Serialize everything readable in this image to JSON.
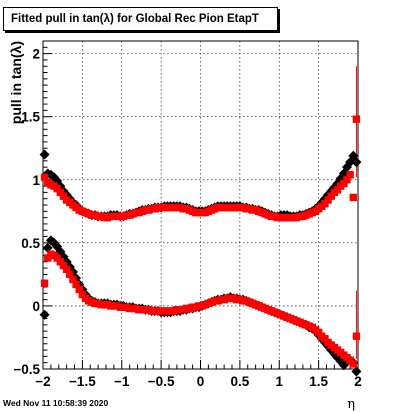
{
  "chart_data": {
    "type": "scatter",
    "title": "Fitted pull in tan(λ) for Global Rec Pion EtapT",
    "xlabel": "η",
    "ylabel": "pull in tan(λ)",
    "xlim": [
      -2,
      2
    ],
    "ylim": [
      -0.5,
      2.1
    ],
    "xticks": [
      -2,
      -1.5,
      -1,
      -0.5,
      0,
      0.5,
      1,
      1.5,
      2
    ],
    "xtick_labels": [
      "−2",
      "−1.5",
      "−1",
      "−0.5",
      "0",
      "0.5",
      "1",
      "1.5",
      "2"
    ],
    "yticks": [
      -0.5,
      0,
      0.5,
      1,
      1.5,
      2
    ],
    "ytick_labels": [
      "−0.5",
      "0",
      "0.5",
      "1",
      "1.5",
      "2"
    ],
    "grid": true,
    "series": [
      {
        "name": "",
        "color": "#000000",
        "marker": "diamond",
        "x": [
          -1.98,
          -1.94,
          -1.9,
          -1.86,
          -1.82,
          -1.78,
          -1.74,
          -1.7,
          -1.66,
          -1.62,
          -1.58,
          -1.54,
          -1.5,
          -1.46,
          -1.42,
          -1.38,
          -1.34,
          -1.3,
          -1.26,
          -1.22,
          -1.18,
          -1.14,
          -1.1,
          -1.06,
          -1.02,
          -0.98,
          -0.94,
          -0.9,
          -0.86,
          -0.82,
          -0.78,
          -0.74,
          -0.7,
          -0.66,
          -0.62,
          -0.58,
          -0.54,
          -0.5,
          -0.46,
          -0.42,
          -0.38,
          -0.34,
          -0.3,
          -0.26,
          -0.22,
          -0.18,
          -0.14,
          -0.1,
          -0.06,
          -0.02,
          0.02,
          0.06,
          0.1,
          0.14,
          0.18,
          0.22,
          0.26,
          0.3,
          0.34,
          0.38,
          0.42,
          0.46,
          0.5,
          0.54,
          0.58,
          0.62,
          0.66,
          0.7,
          0.74,
          0.78,
          0.82,
          0.86,
          0.9,
          0.94,
          0.98,
          1.02,
          1.06,
          1.1,
          1.14,
          1.18,
          1.22,
          1.26,
          1.3,
          1.34,
          1.38,
          1.42,
          1.46,
          1.5,
          1.54,
          1.58,
          1.62,
          1.66,
          1.7,
          1.74,
          1.78,
          1.82,
          1.86,
          1.9,
          1.94,
          1.98
        ],
        "upper_y": [
          1.2,
          1.05,
          1.04,
          1.02,
          0.99,
          0.95,
          0.91,
          0.88,
          0.85,
          0.82,
          0.8,
          0.77,
          0.75,
          0.74,
          0.73,
          0.72,
          0.72,
          0.71,
          0.71,
          0.71,
          0.71,
          0.72,
          0.72,
          0.72,
          0.71,
          0.71,
          0.72,
          0.73,
          0.73,
          0.74,
          0.75,
          0.76,
          0.76,
          0.77,
          0.77,
          0.78,
          0.78,
          0.78,
          0.79,
          0.79,
          0.79,
          0.79,
          0.79,
          0.79,
          0.78,
          0.78,
          0.77,
          0.76,
          0.75,
          0.75,
          0.75,
          0.75,
          0.76,
          0.77,
          0.78,
          0.79,
          0.79,
          0.79,
          0.79,
          0.79,
          0.79,
          0.79,
          0.79,
          0.78,
          0.78,
          0.77,
          0.77,
          0.76,
          0.76,
          0.75,
          0.74,
          0.73,
          0.72,
          0.71,
          0.71,
          0.72,
          0.72,
          0.72,
          0.71,
          0.71,
          0.71,
          0.72,
          0.72,
          0.73,
          0.74,
          0.75,
          0.77,
          0.79,
          0.82,
          0.85,
          0.88,
          0.91,
          0.94,
          0.97,
          1.01,
          1.05,
          1.1,
          1.14,
          1.19,
          1.14
        ],
        "lower_y": [
          -0.07,
          0.46,
          0.52,
          0.5,
          0.47,
          0.43,
          0.39,
          0.35,
          0.31,
          0.27,
          0.22,
          0.17,
          0.13,
          0.09,
          0.06,
          0.04,
          0.03,
          0.02,
          0.02,
          0.02,
          0.02,
          0.01,
          0.01,
          0.01,
          0.0,
          0.0,
          -0.01,
          -0.01,
          -0.01,
          -0.02,
          -0.02,
          -0.02,
          -0.03,
          -0.03,
          -0.04,
          -0.04,
          -0.04,
          -0.05,
          -0.05,
          -0.05,
          -0.05,
          -0.04,
          -0.04,
          -0.04,
          -0.03,
          -0.03,
          -0.02,
          -0.02,
          -0.01,
          -0.01,
          0.0,
          0.01,
          0.02,
          0.03,
          0.04,
          0.05,
          0.05,
          0.06,
          0.06,
          0.07,
          0.06,
          0.06,
          0.05,
          0.05,
          0.04,
          0.03,
          0.02,
          0.01,
          0.0,
          -0.01,
          -0.02,
          -0.03,
          -0.04,
          -0.05,
          -0.06,
          -0.07,
          -0.08,
          -0.09,
          -0.1,
          -0.11,
          -0.12,
          -0.13,
          -0.14,
          -0.15,
          -0.17,
          -0.18,
          -0.2,
          -0.23,
          -0.26,
          -0.29,
          -0.32,
          -0.35,
          -0.38,
          -0.41,
          -0.44,
          -0.47,
          -0.44,
          -0.43,
          -0.45,
          -0.52
        ]
      },
      {
        "name": "",
        "color": "#ff0000",
        "marker": "square",
        "x": [
          -1.98,
          -1.94,
          -1.9,
          -1.86,
          -1.82,
          -1.78,
          -1.74,
          -1.7,
          -1.66,
          -1.62,
          -1.58,
          -1.54,
          -1.5,
          -1.46,
          -1.42,
          -1.38,
          -1.34,
          -1.3,
          -1.26,
          -1.22,
          -1.18,
          -1.14,
          -1.1,
          -1.06,
          -1.02,
          -0.98,
          -0.94,
          -0.9,
          -0.86,
          -0.82,
          -0.78,
          -0.74,
          -0.7,
          -0.66,
          -0.62,
          -0.58,
          -0.54,
          -0.5,
          -0.46,
          -0.42,
          -0.38,
          -0.34,
          -0.3,
          -0.26,
          -0.22,
          -0.18,
          -0.14,
          -0.1,
          -0.06,
          -0.02,
          0.02,
          0.06,
          0.1,
          0.14,
          0.18,
          0.22,
          0.26,
          0.3,
          0.34,
          0.38,
          0.42,
          0.46,
          0.5,
          0.54,
          0.58,
          0.62,
          0.66,
          0.7,
          0.74,
          0.78,
          0.82,
          0.86,
          0.9,
          0.94,
          0.98,
          1.02,
          1.06,
          1.1,
          1.14,
          1.18,
          1.22,
          1.26,
          1.3,
          1.34,
          1.38,
          1.42,
          1.46,
          1.5,
          1.54,
          1.58,
          1.62,
          1.66,
          1.7,
          1.74,
          1.78,
          1.82,
          1.86,
          1.9,
          1.94,
          1.98
        ],
        "upper_y": [
          1.02,
          0.98,
          0.96,
          0.95,
          0.93,
          0.9,
          0.87,
          0.84,
          0.82,
          0.8,
          0.78,
          0.76,
          0.75,
          0.74,
          0.73,
          0.72,
          0.72,
          0.71,
          0.71,
          0.7,
          0.7,
          0.71,
          0.71,
          0.71,
          0.71,
          0.71,
          0.72,
          0.72,
          0.73,
          0.74,
          0.74,
          0.75,
          0.76,
          0.76,
          0.77,
          0.77,
          0.78,
          0.78,
          0.78,
          0.78,
          0.78,
          0.78,
          0.78,
          0.78,
          0.77,
          0.77,
          0.76,
          0.75,
          0.74,
          0.74,
          0.74,
          0.74,
          0.75,
          0.76,
          0.77,
          0.78,
          0.78,
          0.78,
          0.78,
          0.78,
          0.78,
          0.78,
          0.78,
          0.78,
          0.77,
          0.77,
          0.76,
          0.76,
          0.75,
          0.74,
          0.73,
          0.72,
          0.71,
          0.71,
          0.7,
          0.7,
          0.7,
          0.7,
          0.7,
          0.7,
          0.7,
          0.71,
          0.71,
          0.72,
          0.73,
          0.74,
          0.75,
          0.77,
          0.79,
          0.81,
          0.84,
          0.87,
          0.9,
          0.92,
          0.95,
          0.97,
          1.0,
          1.04,
          0.86,
          1.48
        ],
        "lower_y": [
          0.18,
          0.38,
          0.41,
          0.4,
          0.38,
          0.35,
          0.32,
          0.29,
          0.25,
          0.21,
          0.17,
          0.13,
          0.09,
          0.06,
          0.04,
          0.03,
          0.02,
          0.02,
          0.01,
          0.01,
          0.01,
          0.0,
          0.0,
          0.0,
          -0.01,
          -0.01,
          -0.01,
          -0.02,
          -0.02,
          -0.02,
          -0.03,
          -0.03,
          -0.03,
          -0.03,
          -0.04,
          -0.04,
          -0.04,
          -0.04,
          -0.04,
          -0.04,
          -0.04,
          -0.04,
          -0.03,
          -0.03,
          -0.03,
          -0.02,
          -0.02,
          -0.01,
          -0.01,
          0.0,
          0.0,
          0.01,
          0.02,
          0.03,
          0.04,
          0.04,
          0.05,
          0.05,
          0.06,
          0.06,
          0.06,
          0.05,
          0.05,
          0.04,
          0.04,
          0.03,
          0.02,
          0.01,
          0.0,
          -0.01,
          -0.02,
          -0.03,
          -0.04,
          -0.05,
          -0.06,
          -0.07,
          -0.08,
          -0.09,
          -0.1,
          -0.11,
          -0.12,
          -0.13,
          -0.14,
          -0.15,
          -0.16,
          -0.17,
          -0.19,
          -0.21,
          -0.24,
          -0.26,
          -0.29,
          -0.31,
          -0.33,
          -0.35,
          -0.37,
          -0.39,
          -0.41,
          -0.43,
          -0.46,
          -0.24
        ]
      }
    ],
    "error_bars": [
      {
        "series": 1,
        "x": 1.98,
        "y": 1.48,
        "low": 1.02,
        "high": 1.9
      },
      {
        "series": 1,
        "x": 1.98,
        "y": -0.24,
        "low": -0.42,
        "high": 0.12
      }
    ]
  },
  "footer": {
    "date": "Wed Nov 11 10:58:39 2020"
  }
}
